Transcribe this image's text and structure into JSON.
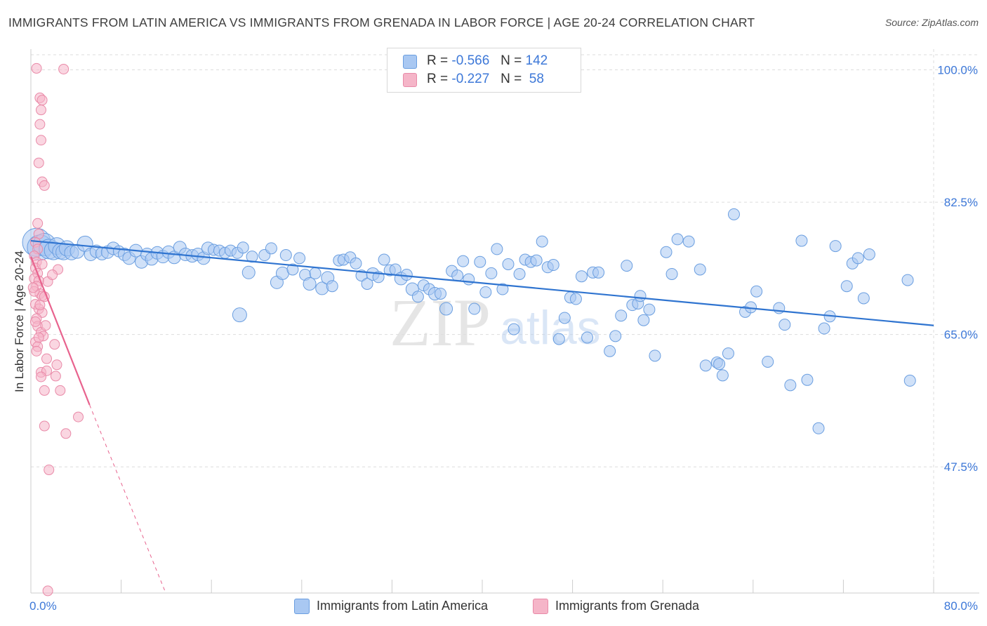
{
  "title": "IMMIGRANTS FROM LATIN AMERICA VS IMMIGRANTS FROM GRENADA IN LABOR FORCE | AGE 20-24 CORRELATION CHART",
  "source": "Source: ZipAtlas.com",
  "watermark": "ZIPatlas",
  "legend": {
    "r_label": "R =",
    "n_label": "N =",
    "rows": [
      {
        "r": "-0.566",
        "n": "142",
        "color": "#a9c8f2"
      },
      {
        "r": "-0.227",
        "n": "58",
        "color": "#f5b5c8"
      }
    ]
  },
  "colors": {
    "blue_fill": "#a9c8f2",
    "blue_stroke": "#6a9ee0",
    "blue_line": "#2f74d0",
    "pink_fill": "#f5b5c8",
    "pink_stroke": "#e98aa8",
    "pink_line": "#e8638e",
    "tick_label": "#3d78d8",
    "grid": "#dddddd"
  },
  "chart_data": {
    "type": "scatter",
    "xlabel": "",
    "ylabel": "In Labor Force | Age 20-24",
    "xlim": [
      0,
      80
    ],
    "ylim": [
      31,
      102
    ],
    "x_tick_labels": [
      "0.0%",
      "80.0%"
    ],
    "y_ticks": [
      47.5,
      65.0,
      82.5,
      100.0
    ],
    "y_tick_labels": [
      "47.5%",
      "65.0%",
      "82.5%",
      "100.0%"
    ],
    "grid": true,
    "legend_position": "top-center and bottom",
    "series": [
      {
        "name": "Immigrants from Latin America",
        "color": "#a9c8f2",
        "trend": {
          "x": [
            0,
            80
          ],
          "y": [
            77.4,
            66.2
          ]
        },
        "points": [
          [
            0.5,
            77.2,
            20
          ],
          [
            0.8,
            76.5,
            18
          ],
          [
            1.2,
            76.9,
            16
          ],
          [
            1.6,
            76.3,
            14
          ],
          [
            2.0,
            76.1,
            13
          ],
          [
            2.3,
            76.7,
            12
          ],
          [
            2.6,
            76.0,
            11
          ],
          [
            2.9,
            75.9,
            11
          ],
          [
            3.2,
            76.4,
            11
          ],
          [
            3.6,
            75.8,
            10
          ],
          [
            4.1,
            76.0,
            10
          ],
          [
            4.8,
            77.0,
            11
          ],
          [
            5.3,
            75.6,
            9
          ],
          [
            5.8,
            76.0,
            9
          ],
          [
            6.3,
            75.7,
            9
          ],
          [
            6.8,
            75.9,
            9
          ],
          [
            7.3,
            76.4,
            9
          ],
          [
            7.8,
            76.0,
            8
          ],
          [
            8.3,
            75.6,
            9
          ],
          [
            8.7,
            75.1,
            9
          ],
          [
            9.3,
            76.1,
            9
          ],
          [
            9.8,
            74.6,
            9
          ],
          [
            10.3,
            75.6,
            9
          ],
          [
            10.7,
            75.0,
            9
          ],
          [
            11.2,
            75.8,
            9
          ],
          [
            11.7,
            75.3,
            9
          ],
          [
            12.2,
            75.9,
            9
          ],
          [
            12.7,
            75.2,
            9
          ],
          [
            13.2,
            76.5,
            9
          ],
          [
            13.7,
            75.6,
            9
          ],
          [
            14.3,
            75.4,
            9
          ],
          [
            14.8,
            75.6,
            9
          ],
          [
            15.3,
            75.1,
            9
          ],
          [
            15.7,
            76.4,
            9
          ],
          [
            16.2,
            76.2,
            8
          ],
          [
            16.7,
            76.1,
            8
          ],
          [
            17.2,
            75.8,
            8
          ],
          [
            17.7,
            76.1,
            8
          ],
          [
            18.3,
            75.8,
            8
          ],
          [
            18.8,
            76.5,
            8
          ],
          [
            19.3,
            73.2,
            9
          ],
          [
            19.6,
            75.3,
            8
          ],
          [
            20.7,
            75.5,
            8
          ],
          [
            21.3,
            76.4,
            8
          ],
          [
            21.8,
            71.9,
            9
          ],
          [
            22.3,
            73.1,
            9
          ],
          [
            22.6,
            75.5,
            8
          ],
          [
            23.2,
            73.6,
            8
          ],
          [
            23.8,
            75.1,
            8
          ],
          [
            24.3,
            72.9,
            8
          ],
          [
            24.7,
            71.7,
            9
          ],
          [
            25.2,
            73.1,
            8
          ],
          [
            25.8,
            71.1,
            9
          ],
          [
            26.3,
            72.5,
            9
          ],
          [
            26.7,
            71.4,
            8
          ],
          [
            27.3,
            74.8,
            8
          ],
          [
            27.7,
            74.9,
            8
          ],
          [
            28.3,
            75.2,
            8
          ],
          [
            28.8,
            74.4,
            8
          ],
          [
            29.3,
            72.8,
            8
          ],
          [
            29.8,
            71.7,
            8
          ],
          [
            30.3,
            73.0,
            9
          ],
          [
            30.8,
            72.6,
            8
          ],
          [
            31.3,
            74.9,
            8
          ],
          [
            31.8,
            73.5,
            8
          ],
          [
            32.3,
            73.6,
            8
          ],
          [
            32.8,
            72.4,
            9
          ],
          [
            33.3,
            72.9,
            8
          ],
          [
            33.8,
            71.0,
            9
          ],
          [
            34.3,
            70.0,
            8
          ],
          [
            34.8,
            71.5,
            8
          ],
          [
            35.3,
            71.0,
            8
          ],
          [
            35.8,
            70.4,
            9
          ],
          [
            36.3,
            70.4,
            8
          ],
          [
            36.8,
            68.4,
            9
          ],
          [
            37.3,
            73.4,
            8
          ],
          [
            37.8,
            72.8,
            8
          ],
          [
            38.3,
            74.7,
            8
          ],
          [
            38.8,
            72.3,
            8
          ],
          [
            39.3,
            68.4,
            8
          ],
          [
            39.8,
            74.6,
            8
          ],
          [
            40.3,
            70.6,
            8
          ],
          [
            40.8,
            73.1,
            8
          ],
          [
            41.3,
            76.3,
            8
          ],
          [
            41.8,
            71.0,
            8
          ],
          [
            42.3,
            74.3,
            8
          ],
          [
            42.8,
            65.7,
            8
          ],
          [
            43.3,
            73.0,
            8
          ],
          [
            43.8,
            74.9,
            8
          ],
          [
            44.3,
            74.6,
            8
          ],
          [
            44.8,
            74.8,
            8
          ],
          [
            45.3,
            77.3,
            8
          ],
          [
            45.8,
            73.9,
            8
          ],
          [
            46.3,
            74.2,
            8
          ],
          [
            46.8,
            64.4,
            8
          ],
          [
            47.3,
            67.2,
            8
          ],
          [
            47.8,
            69.9,
            8
          ],
          [
            48.3,
            69.7,
            8
          ],
          [
            48.8,
            72.7,
            8
          ],
          [
            49.3,
            64.6,
            8
          ],
          [
            49.8,
            73.2,
            8
          ],
          [
            50.3,
            73.2,
            8
          ],
          [
            51.3,
            62.8,
            8
          ],
          [
            51.8,
            64.8,
            8
          ],
          [
            52.3,
            67.5,
            8
          ],
          [
            52.8,
            74.1,
            8
          ],
          [
            53.3,
            68.9,
            8
          ],
          [
            53.8,
            69.1,
            8
          ],
          [
            54.3,
            66.9,
            8
          ],
          [
            54.8,
            68.3,
            8
          ],
          [
            55.3,
            62.2,
            8
          ],
          [
            56.3,
            75.9,
            8
          ],
          [
            56.8,
            73.0,
            8
          ],
          [
            57.3,
            77.6,
            8
          ],
          [
            58.3,
            77.3,
            8
          ],
          [
            59.3,
            73.6,
            8
          ],
          [
            59.8,
            60.9,
            8
          ],
          [
            60.8,
            61.3,
            8
          ],
          [
            61.3,
            59.6,
            8
          ],
          [
            61.8,
            62.5,
            8
          ],
          [
            62.3,
            80.9,
            8
          ],
          [
            63.3,
            68.0,
            8
          ],
          [
            63.8,
            68.6,
            8
          ],
          [
            64.3,
            70.7,
            8
          ],
          [
            65.3,
            61.4,
            8
          ],
          [
            66.3,
            68.5,
            8
          ],
          [
            66.8,
            66.3,
            8
          ],
          [
            67.3,
            58.3,
            8
          ],
          [
            68.3,
            77.4,
            8
          ],
          [
            68.8,
            59.0,
            8
          ],
          [
            70.3,
            65.8,
            8
          ],
          [
            70.8,
            67.4,
            8
          ],
          [
            71.3,
            76.7,
            8
          ],
          [
            72.3,
            71.4,
            8
          ],
          [
            72.8,
            74.4,
            8
          ],
          [
            73.3,
            75.1,
            8
          ],
          [
            73.8,
            69.8,
            8
          ],
          [
            74.3,
            75.6,
            8
          ],
          [
            77.7,
            72.2,
            8
          ],
          [
            77.9,
            58.9,
            8
          ],
          [
            69.8,
            52.6,
            8
          ],
          [
            61.0,
            61.1,
            8
          ],
          [
            54.0,
            70.1,
            8
          ],
          [
            18.5,
            67.6,
            10
          ]
        ]
      },
      {
        "name": "Immigrants from Grenada",
        "color": "#f5b5c8",
        "trend": {
          "x": [
            0,
            5.2
          ],
          "y": [
            75.3,
            55.7
          ]
        },
        "trend_ext": {
          "x": [
            5.2,
            11.9
          ],
          "y": [
            55.7,
            31
          ]
        },
        "points": [
          [
            0.5,
            100.2,
            7
          ],
          [
            2.9,
            100.1,
            7
          ],
          [
            0.8,
            96.3,
            7
          ],
          [
            1.0,
            96.0,
            7
          ],
          [
            0.9,
            94.7,
            7
          ],
          [
            0.8,
            92.8,
            7
          ],
          [
            0.9,
            90.7,
            7
          ],
          [
            0.7,
            87.7,
            7
          ],
          [
            1.0,
            85.2,
            7
          ],
          [
            1.2,
            84.7,
            7
          ],
          [
            0.6,
            79.7,
            7
          ],
          [
            0.7,
            78.3,
            7
          ],
          [
            0.4,
            77.2,
            7
          ],
          [
            0.6,
            76.3,
            7
          ],
          [
            0.3,
            75.4,
            7
          ],
          [
            0.5,
            74.6,
            7
          ],
          [
            0.4,
            73.8,
            7
          ],
          [
            0.6,
            73.1,
            7
          ],
          [
            2.4,
            73.6,
            7
          ],
          [
            0.3,
            72.4,
            7
          ],
          [
            0.7,
            72.1,
            7
          ],
          [
            1.5,
            72.0,
            7
          ],
          [
            0.5,
            71.4,
            7
          ],
          [
            0.8,
            70.4,
            7
          ],
          [
            1.0,
            70.1,
            7
          ],
          [
            1.2,
            70.0,
            7
          ],
          [
            0.4,
            69.0,
            7
          ],
          [
            0.7,
            68.4,
            7
          ],
          [
            1.0,
            67.9,
            7
          ],
          [
            0.5,
            67.1,
            7
          ],
          [
            0.6,
            66.1,
            7
          ],
          [
            0.9,
            65.3,
            7
          ],
          [
            1.1,
            64.8,
            7
          ],
          [
            0.4,
            64.0,
            7
          ],
          [
            0.6,
            63.4,
            7
          ],
          [
            2.1,
            63.7,
            7
          ],
          [
            0.5,
            62.8,
            7
          ],
          [
            1.4,
            61.8,
            7
          ],
          [
            2.3,
            61.0,
            7
          ],
          [
            0.9,
            60.0,
            7
          ],
          [
            1.4,
            60.2,
            7
          ],
          [
            0.9,
            59.4,
            7
          ],
          [
            2.2,
            59.5,
            7
          ],
          [
            1.2,
            57.6,
            7
          ],
          [
            2.6,
            57.6,
            7
          ],
          [
            4.2,
            54.1,
            7
          ],
          [
            1.2,
            52.9,
            7
          ],
          [
            3.1,
            51.9,
            7
          ],
          [
            1.6,
            47.1,
            7
          ],
          [
            1.5,
            31.1,
            7
          ],
          [
            0.8,
            68.9,
            7
          ],
          [
            0.3,
            70.7,
            7
          ],
          [
            1.3,
            66.2,
            7
          ],
          [
            0.7,
            64.6,
            7
          ],
          [
            0.2,
            71.2,
            7
          ],
          [
            1.0,
            74.3,
            7
          ],
          [
            0.4,
            66.7,
            7
          ],
          [
            1.9,
            72.9,
            7
          ]
        ]
      }
    ]
  }
}
